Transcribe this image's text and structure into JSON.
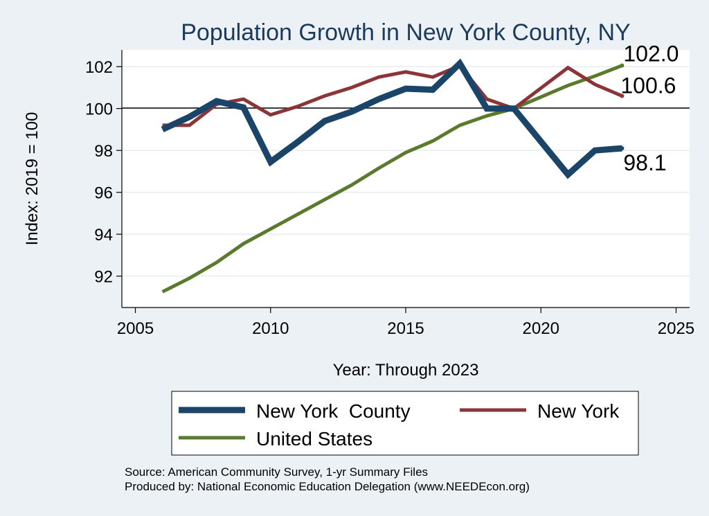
{
  "chart_data": {
    "type": "line",
    "title": "Population Growth in New York County, NY",
    "xlabel": "Year: Through 2023",
    "ylabel": "Index: 2019 = 100",
    "xlim": [
      2004.5,
      2025.5
    ],
    "ylim": [
      90.5,
      102.8
    ],
    "x_ticks": [
      "2005",
      "2010",
      "2015",
      "2020",
      "2025"
    ],
    "y_ticks": [
      "92",
      "94",
      "96",
      "98",
      "100",
      "102"
    ],
    "reference_line": 100,
    "series": [
      {
        "name": "New York  County",
        "color": "#1a4568",
        "x": [
          2006,
          2007,
          2008,
          2009,
          2010,
          2011,
          2012,
          2013,
          2014,
          2015,
          2016,
          2017,
          2018,
          2019,
          2021,
          2022,
          2023
        ],
        "values": [
          99.0,
          99.6,
          100.35,
          100.05,
          97.45,
          98.4,
          99.4,
          99.85,
          100.45,
          100.95,
          100.9,
          102.15,
          100.0,
          100.0,
          96.85,
          98.0,
          98.1
        ],
        "end_label": "98.1"
      },
      {
        "name": "New York",
        "color": "#8c3538",
        "x": [
          2006,
          2007,
          2008,
          2009,
          2010,
          2011,
          2012,
          2013,
          2014,
          2015,
          2016,
          2017,
          2018,
          2019,
          2021,
          2022,
          2023
        ],
        "values": [
          99.2,
          99.2,
          100.2,
          100.45,
          99.7,
          100.1,
          100.6,
          101.0,
          101.5,
          101.75,
          101.5,
          102.05,
          100.45,
          100.0,
          101.95,
          101.15,
          100.6
        ],
        "end_label": "100.6"
      },
      {
        "name": "United States",
        "color": "#5a7a2e",
        "x": [
          2006,
          2007,
          2008,
          2009,
          2010,
          2011,
          2012,
          2013,
          2014,
          2015,
          2016,
          2017,
          2018,
          2019,
          2021,
          2022,
          2023
        ],
        "values": [
          91.25,
          91.9,
          92.65,
          93.55,
          94.25,
          94.95,
          95.65,
          96.35,
          97.15,
          97.9,
          98.45,
          99.2,
          99.65,
          100.0,
          101.1,
          101.55,
          102.05
        ],
        "end_label": "102.0"
      }
    ],
    "legend_position": "bottom",
    "source": "Source: American Community Survey, 1-yr Summary Files",
    "producer": "Produced by: National Economic Education Delegation (www.NEEDEcon.org)"
  }
}
